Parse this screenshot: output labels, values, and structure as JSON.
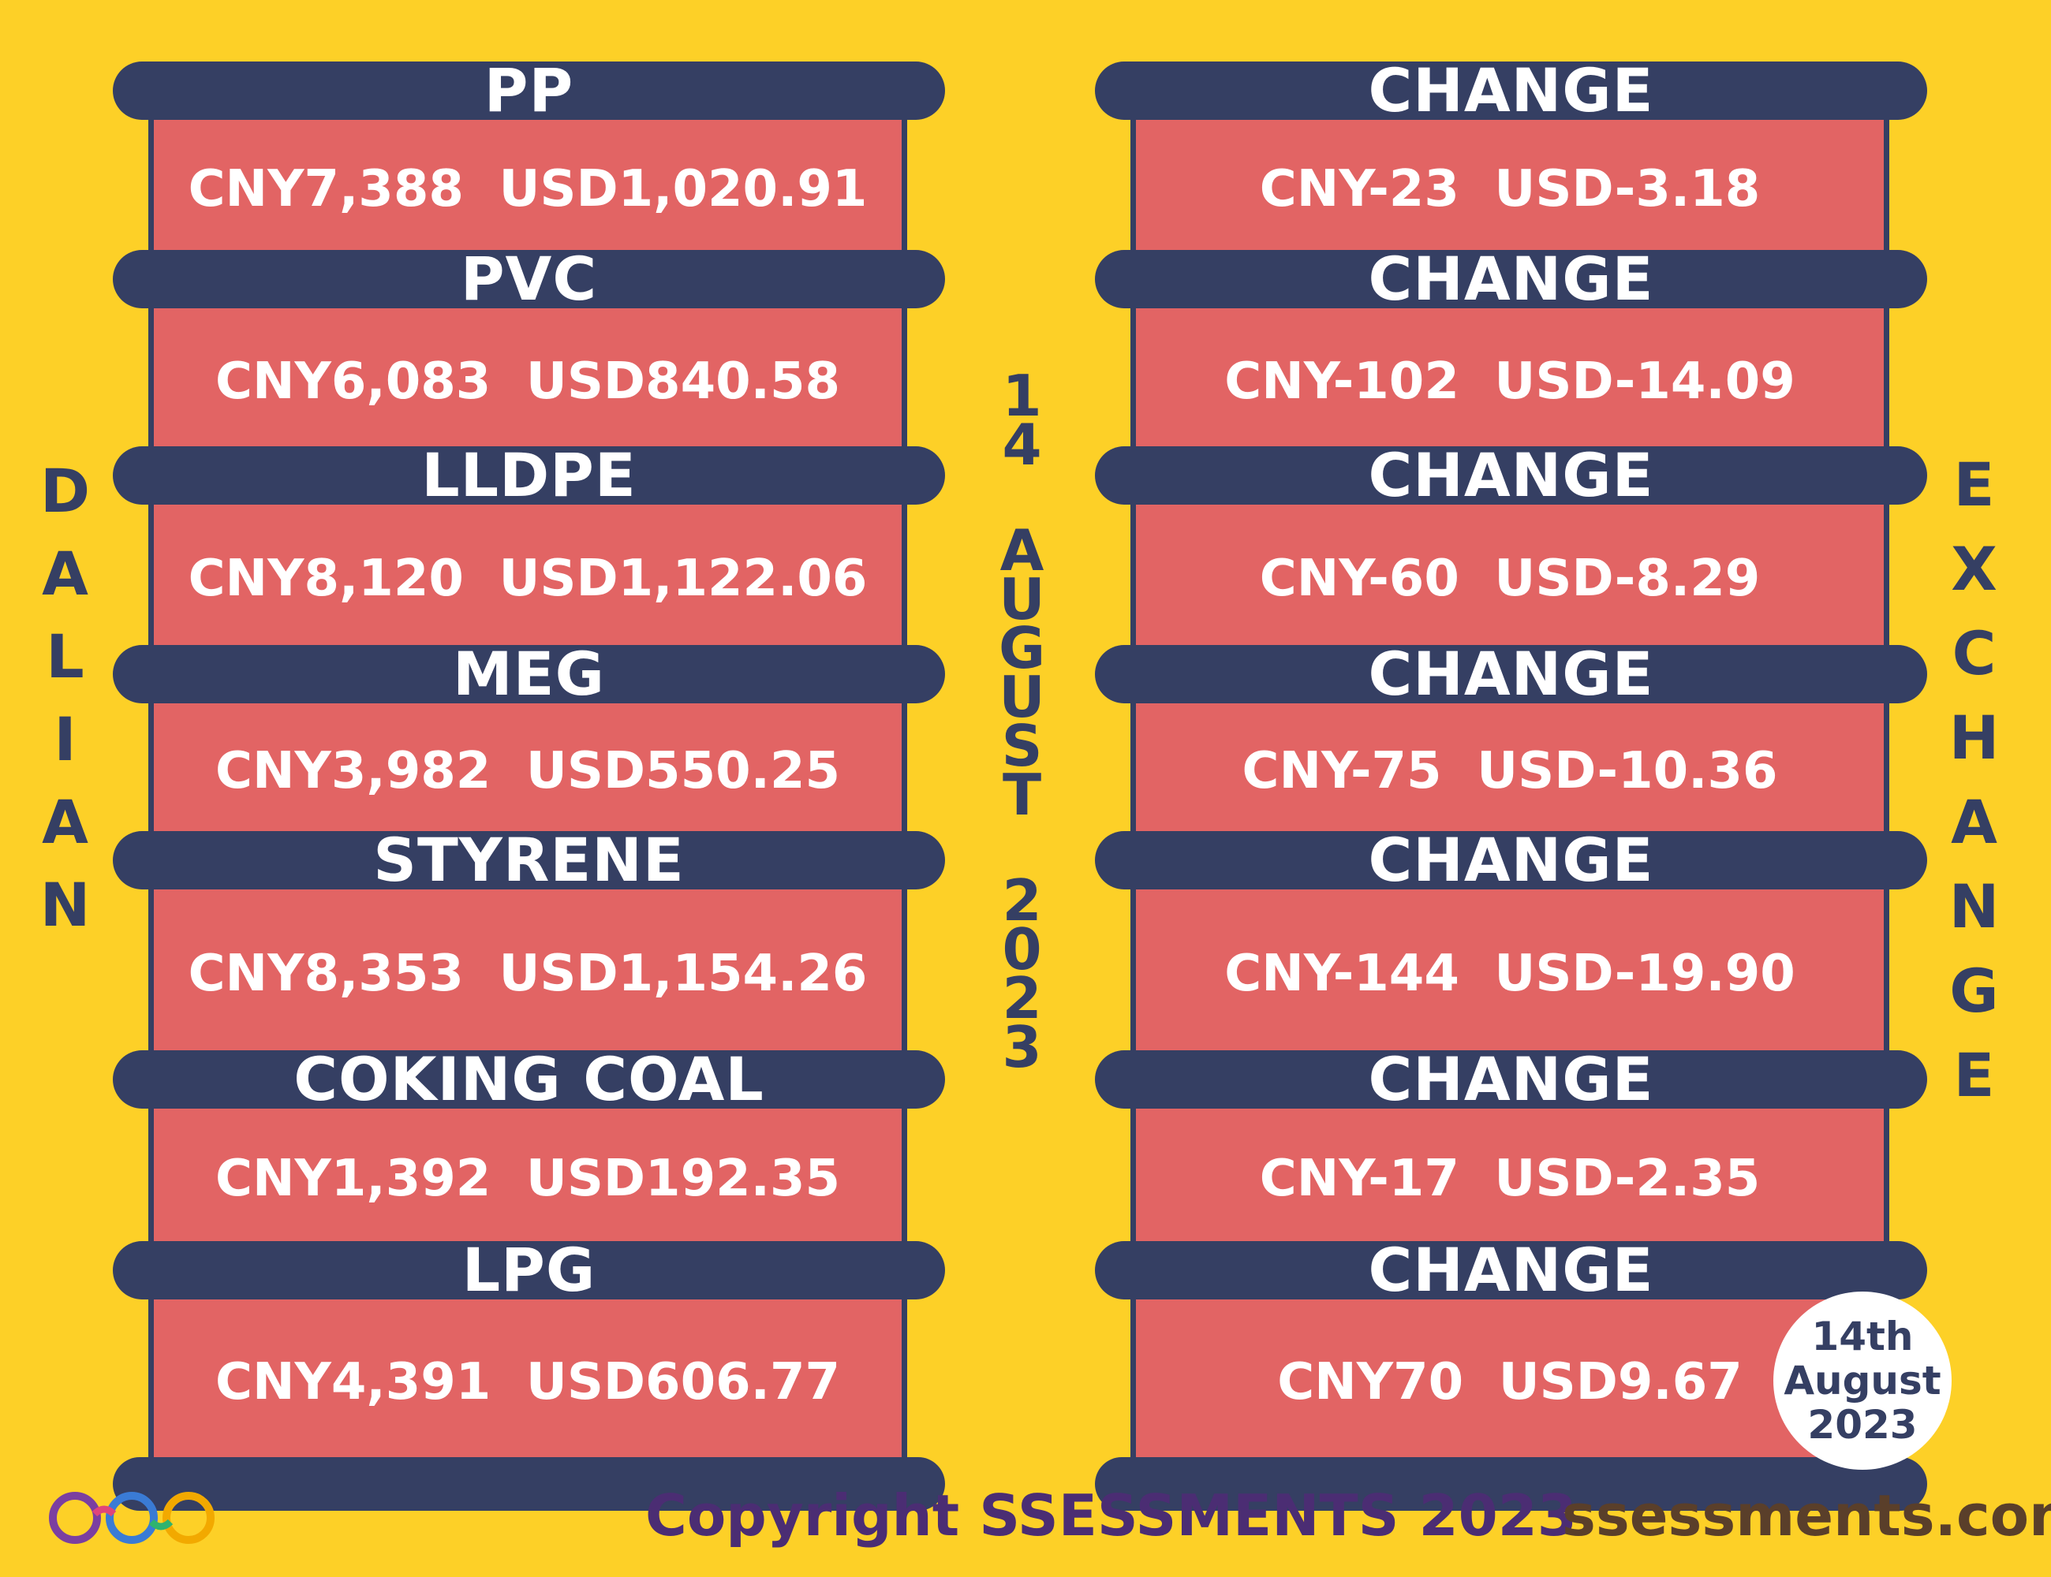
{
  "left_title_vertical": [
    "D",
    "A",
    "L",
    "I",
    "A",
    "N"
  ],
  "right_title_vertical": [
    "E",
    "X",
    "C",
    "H",
    "A",
    "N",
    "G",
    "E"
  ],
  "date_vertical": [
    "1",
    "4",
    "",
    "A",
    "U",
    "G",
    "U",
    "S",
    "T",
    "",
    "2",
    "0",
    "2",
    "3"
  ],
  "products": [
    {
      "name": "PP",
      "price": "CNY7,388  USD1,020.91"
    },
    {
      "name": "PVC",
      "price": "CNY6,083  USD840.58"
    },
    {
      "name": "LLDPE",
      "price": "CNY8,120  USD1,122.06"
    },
    {
      "name": "MEG",
      "price": "CNY3,982  USD550.25"
    },
    {
      "name": "STYRENE",
      "price": "CNY8,353  USD1,154.26"
    },
    {
      "name": "COKING COAL",
      "price": "CNY1,392  USD192.35"
    },
    {
      "name": "LPG",
      "price": "CNY4,391  USD606.77"
    }
  ],
  "changes": [
    {
      "label": "CHANGE",
      "value": "CNY-23  USD-3.18"
    },
    {
      "label": "CHANGE",
      "value": "CNY-102  USD-14.09"
    },
    {
      "label": "CHANGE",
      "value": "CNY-60  USD-8.29"
    },
    {
      "label": "CHANGE",
      "value": "CNY-75  USD-10.36"
    },
    {
      "label": "CHANGE",
      "value": "CNY-144  USD-19.90"
    },
    {
      "label": "CHANGE",
      "value": "CNY-17  USD-2.35"
    },
    {
      "label": "CHANGE",
      "value": "CNY70  USD9.67"
    }
  ],
  "badge": {
    "line1": "14th",
    "line2": "August",
    "line3": "2023"
  },
  "footer": {
    "copyright": "Copyright SSESSMENTS 2023",
    "website": "ssessments.com"
  },
  "colors": {
    "background": "#fdd027",
    "cap": "#353f63",
    "box": "#e26464",
    "text": "#ffffff"
  }
}
